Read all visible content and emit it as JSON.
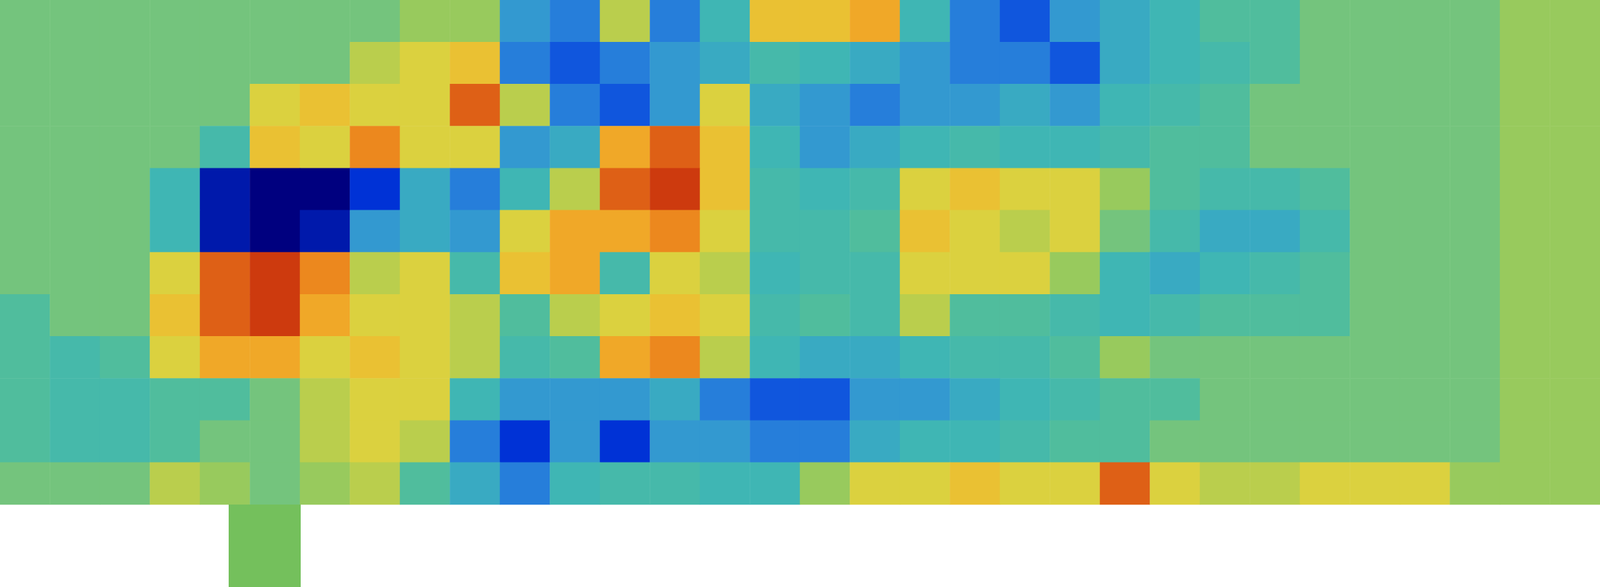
{
  "chart_data": {
    "type": "heatmap",
    "tick_labels": false,
    "grid": false,
    "color_range": [
      -1,
      1
    ],
    "cells": [
      [
        0,
        0,
        0,
        0,
        0,
        0,
        0,
        0,
        0.1,
        0.1,
        -0.5,
        -0.6,
        0.2,
        -0.6,
        -0.3,
        0.4,
        0.4,
        0.5,
        -0.3,
        -0.6,
        -0.7,
        -0.5,
        -0.4,
        -0.3,
        -0.1,
        -0.1,
        0,
        0,
        0,
        0,
        0.1,
        0.1
      ],
      [
        0,
        0,
        0,
        0,
        0,
        0,
        0,
        0.2,
        0.3,
        0.4,
        -0.6,
        -0.7,
        -0.6,
        -0.5,
        -0.4,
        -0.2,
        -0.3,
        -0.4,
        -0.5,
        -0.6,
        -0.6,
        -0.7,
        -0.4,
        -0.3,
        -0.2,
        -0.1,
        0,
        0,
        0,
        0,
        0.1,
        0.1
      ],
      [
        0,
        0,
        0,
        0,
        0,
        0.3,
        0.4,
        0.3,
        0.3,
        0.7,
        0.2,
        -0.6,
        -0.7,
        -0.5,
        0.3,
        -0.4,
        -0.5,
        -0.6,
        -0.5,
        -0.5,
        -0.4,
        -0.5,
        -0.3,
        -0.2,
        -0.1,
        0,
        0,
        0,
        0,
        0,
        0.1,
        0.1
      ],
      [
        0,
        0,
        0,
        0,
        -0.2,
        0.4,
        0.3,
        0.6,
        0.3,
        0.3,
        -0.5,
        -0.4,
        0.5,
        0.7,
        0.4,
        -0.3,
        -0.5,
        -0.4,
        -0.3,
        -0.2,
        -0.3,
        -0.3,
        -0.2,
        -0.1,
        -0.1,
        0,
        0,
        0,
        0,
        0,
        0.1,
        0.1
      ],
      [
        0,
        0,
        0,
        -0.3,
        -0.9,
        -1,
        -1,
        -0.8,
        -0.4,
        -0.6,
        -0.3,
        0.2,
        0.7,
        0.8,
        0.4,
        -0.2,
        -0.3,
        -0.2,
        0.3,
        0.4,
        0.3,
        0.3,
        0.1,
        -0.1,
        -0.2,
        -0.2,
        -0.1,
        0,
        0,
        0,
        0.1,
        0.1
      ],
      [
        0,
        0,
        0,
        -0.3,
        -0.9,
        -1,
        -0.9,
        -0.5,
        -0.4,
        -0.5,
        0.3,
        0.5,
        0.5,
        0.6,
        0.3,
        -0.2,
        -0.2,
        -0.1,
        0.4,
        0.3,
        0.2,
        0.3,
        0,
        -0.2,
        -0.4,
        -0.4,
        -0.2,
        0,
        0,
        0,
        0.1,
        0.1
      ],
      [
        0,
        0,
        0,
        0.3,
        0.7,
        0.8,
        0.6,
        0.2,
        0.3,
        -0.2,
        0.4,
        0.5,
        -0.2,
        0.3,
        0.2,
        -0.3,
        -0.2,
        -0.2,
        0.3,
        0.3,
        0.3,
        0.1,
        -0.3,
        -0.4,
        -0.3,
        -0.2,
        -0.1,
        0,
        0,
        0,
        0.1,
        0.1
      ],
      [
        -0.1,
        0,
        0,
        0.4,
        0.7,
        0.8,
        0.5,
        0.3,
        0.3,
        0.2,
        -0.1,
        0.2,
        0.3,
        0.4,
        0.3,
        -0.2,
        -0.1,
        -0.2,
        0.2,
        -0.1,
        -0.1,
        -0.2,
        -0.3,
        -0.2,
        -0.1,
        -0.1,
        -0.1,
        0,
        0,
        0,
        0.1,
        0.1
      ],
      [
        -0.1,
        -0.2,
        -0.1,
        0.3,
        0.5,
        0.5,
        0.3,
        0.4,
        0.3,
        0.2,
        -0.2,
        -0.1,
        0.5,
        0.6,
        0.2,
        -0.3,
        -0.4,
        -0.4,
        -0.3,
        -0.2,
        -0.2,
        -0.1,
        0.1,
        0,
        0,
        0,
        0,
        0,
        0,
        0,
        0.1,
        0.1
      ],
      [
        -0.1,
        -0.2,
        -0.2,
        -0.1,
        -0.1,
        0,
        0.2,
        0.3,
        0.3,
        -0.3,
        -0.5,
        -0.5,
        -0.5,
        -0.4,
        -0.6,
        -0.7,
        -0.7,
        -0.5,
        -0.5,
        -0.4,
        -0.3,
        -0.2,
        -0.1,
        -0.1,
        0,
        0,
        0,
        0,
        0,
        0,
        0.1,
        0.1
      ],
      [
        -0.1,
        -0.2,
        -0.2,
        -0.1,
        0,
        0,
        0.2,
        0.3,
        0.2,
        -0.6,
        -0.8,
        -0.5,
        -0.8,
        -0.5,
        -0.5,
        -0.6,
        -0.6,
        -0.4,
        -0.3,
        -0.3,
        -0.2,
        -0.1,
        -0.1,
        0,
        0,
        0,
        0,
        0,
        0,
        0,
        0.1,
        0.1
      ],
      [
        0,
        0,
        0,
        0.2,
        0.1,
        0,
        0.1,
        0.2,
        -0.1,
        -0.4,
        -0.6,
        -0.3,
        -0.2,
        -0.2,
        -0.3,
        -0.3,
        0.1,
        0.3,
        0.3,
        0.4,
        0.3,
        0.3,
        0.7,
        0.3,
        0.2,
        0.2,
        0.3,
        0.3,
        0.3,
        0.1,
        0.1,
        0.1
      ]
    ]
  }
}
